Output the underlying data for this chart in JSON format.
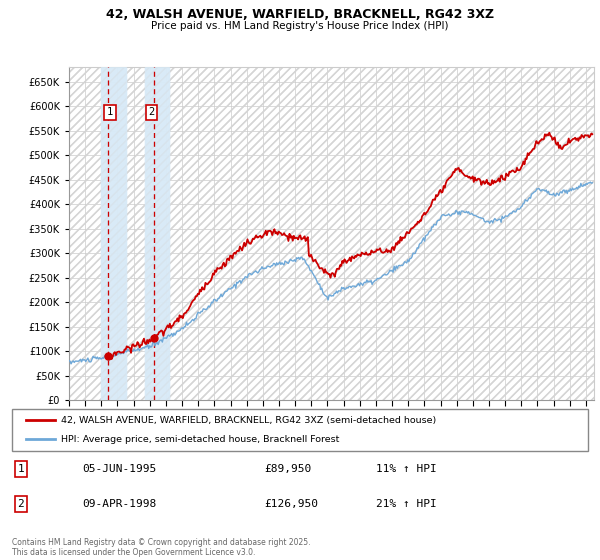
{
  "title": "42, WALSH AVENUE, WARFIELD, BRACKNELL, RG42 3XZ",
  "subtitle": "Price paid vs. HM Land Registry's House Price Index (HPI)",
  "ylim": [
    0,
    680000
  ],
  "yticks": [
    0,
    50000,
    100000,
    150000,
    200000,
    250000,
    300000,
    350000,
    400000,
    450000,
    500000,
    550000,
    600000,
    650000
  ],
  "sale1_date": 1995.44,
  "sale1_price": 89950,
  "sale2_date": 1998.27,
  "sale2_price": 126950,
  "hpi_color": "#6ea8d8",
  "price_color": "#cc0000",
  "sale_marker_color": "#cc0000",
  "annotation_box_color": "#cc0000",
  "shade_color": "#d8eaf7",
  "grid_color": "#cccccc",
  "legend_line1": "42, WALSH AVENUE, WARFIELD, BRACKNELL, RG42 3XZ (semi-detached house)",
  "legend_line2": "HPI: Average price, semi-detached house, Bracknell Forest",
  "table_row1": [
    "1",
    "05-JUN-1995",
    "£89,950",
    "11% ↑ HPI"
  ],
  "table_row2": [
    "2",
    "09-APR-1998",
    "£126,950",
    "21% ↑ HPI"
  ],
  "footer": "Contains HM Land Registry data © Crown copyright and database right 2025.\nThis data is licensed under the Open Government Licence v3.0.",
  "xlim_start": 1993.0,
  "xlim_end": 2025.5
}
